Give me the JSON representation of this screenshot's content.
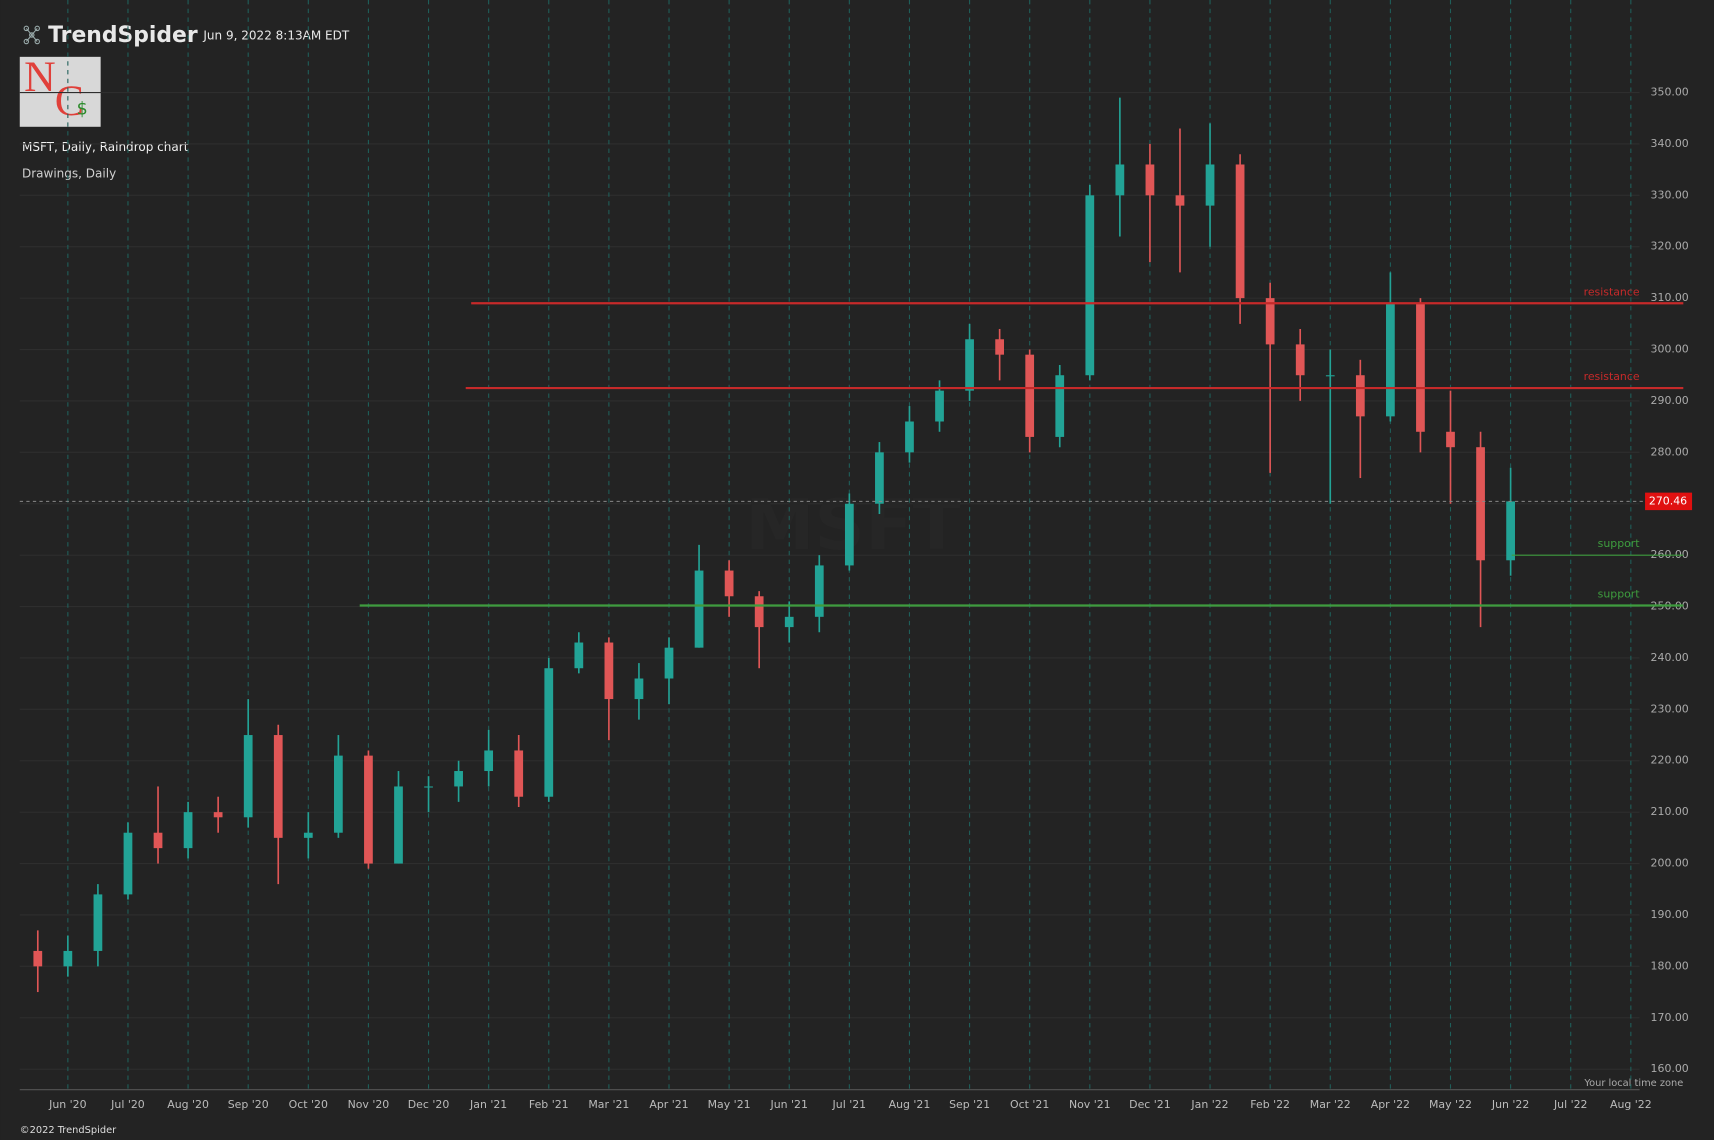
{
  "header": {
    "brand": "TrendSpider",
    "timestamp": "Jun 9, 2022 8:13AM EDT",
    "chart_info": "MSFT, Daily, Raindrop chart",
    "drawings": "Drawings, Daily",
    "timezone_note": "Your local time zone",
    "copyright": "©2022 TrendSpider",
    "logo": {
      "n": "N",
      "c": "C",
      "s": "$"
    }
  },
  "chart_data": {
    "type": "candlestick",
    "watermark": "MSFT",
    "categories": [
      null,
      "Jun '20",
      null,
      "Jul '20",
      null,
      "Aug '20",
      null,
      "Sep '20",
      null,
      "Oct '20",
      null,
      "Nov '20",
      null,
      "Dec '20",
      null,
      "Jan '21",
      null,
      "Feb '21",
      null,
      "Mar '21",
      null,
      "Apr '21",
      null,
      "May '21",
      null,
      "Jun '21",
      null,
      "Jul '21",
      null,
      "Aug '21",
      null,
      "Sep '21",
      null,
      "Oct '21",
      null,
      "Nov '21",
      null,
      "Dec '21",
      null,
      "Jan '22",
      null,
      "Feb '22",
      null,
      "Mar '22",
      null,
      "Apr '22",
      null,
      "May '22",
      null,
      "Jun '22",
      null,
      "Jul '22",
      null,
      "Aug '22"
    ],
    "open": [
      183,
      180,
      183,
      194,
      206,
      203,
      210,
      209,
      225,
      205,
      206,
      221,
      200,
      215,
      215,
      218,
      222,
      213,
      238,
      243,
      232,
      236,
      242,
      257,
      252,
      246,
      248,
      258,
      270,
      280,
      286,
      292,
      302,
      299,
      283,
      295,
      330,
      336,
      330,
      328,
      336,
      310,
      301,
      295,
      295,
      287,
      309,
      284,
      281,
      259,
      null,
      null,
      null,
      null
    ],
    "high": [
      187,
      186,
      196,
      208,
      215,
      212,
      213,
      232,
      227,
      210,
      225,
      222,
      218,
      217,
      220,
      226,
      225,
      240,
      245,
      244,
      239,
      244,
      262,
      259,
      253,
      251,
      260,
      272,
      282,
      289,
      294,
      305,
      304,
      300,
      297,
      332,
      349,
      340,
      343,
      344,
      338,
      313,
      304,
      300,
      298,
      315,
      310,
      292,
      284,
      277,
      null,
      null,
      null,
      null
    ],
    "low": [
      175,
      178,
      180,
      193,
      200,
      201,
      206,
      207,
      196,
      201,
      205,
      199,
      200,
      210,
      212,
      215,
      211,
      212,
      237,
      224,
      228,
      231,
      242,
      248,
      238,
      243,
      245,
      257,
      268,
      278,
      284,
      290,
      294,
      280,
      281,
      294,
      322,
      317,
      315,
      320,
      305,
      276,
      290,
      270,
      275,
      286,
      280,
      270,
      246,
      256,
      null,
      null,
      null,
      null
    ],
    "close": [
      180,
      183,
      194,
      206,
      203,
      210,
      209,
      225,
      205,
      206,
      221,
      200,
      215,
      215,
      218,
      222,
      213,
      238,
      243,
      232,
      236,
      242,
      257,
      252,
      246,
      248,
      258,
      270,
      280,
      286,
      292,
      302,
      299,
      283,
      295,
      330,
      336,
      330,
      328,
      336,
      310,
      301,
      295,
      295,
      287,
      309,
      284,
      281,
      259,
      270.46,
      null,
      null,
      null,
      null
    ],
    "up_color": "#22a396",
    "down_color": "#e05656",
    "current_price": 270.46,
    "current_color": "#e01010",
    "levels": [
      {
        "value": 309,
        "label": "resistance",
        "color": "#c62a2a"
      },
      {
        "value": 292.5,
        "label": "resistance",
        "color": "#c62a2a"
      },
      {
        "value": 260,
        "label": "support",
        "color": "#3e9c3e"
      },
      {
        "value": 250.2,
        "label": "support",
        "color": "#3e9c3e"
      }
    ],
    "ylim": [
      156,
      368
    ],
    "yticks": [
      {
        "value": 160,
        "label": "160.00"
      },
      {
        "value": 170,
        "label": "170.00"
      },
      {
        "value": 180,
        "label": "180.00"
      },
      {
        "value": 190,
        "label": "190.00"
      },
      {
        "value": 200,
        "label": "200.00"
      },
      {
        "value": 210,
        "label": "210.00"
      },
      {
        "value": 220,
        "label": "220.00"
      },
      {
        "value": 230,
        "label": "230.00"
      },
      {
        "value": 240,
        "label": "240.00"
      },
      {
        "value": 250,
        "label": "250.00"
      },
      {
        "value": 260,
        "label": "260.00"
      },
      {
        "value": 270,
        "label": "270.00"
      },
      {
        "value": 280,
        "label": "280.00"
      },
      {
        "value": 290,
        "label": "290.00"
      },
      {
        "value": 300,
        "label": "300.00"
      },
      {
        "value": 310,
        "label": "310.00"
      },
      {
        "value": 320,
        "label": "320.00"
      },
      {
        "value": 330,
        "label": "330.00"
      },
      {
        "value": 340,
        "label": "340.00"
      },
      {
        "value": 350,
        "label": "350.00"
      }
    ],
    "grid": true
  }
}
